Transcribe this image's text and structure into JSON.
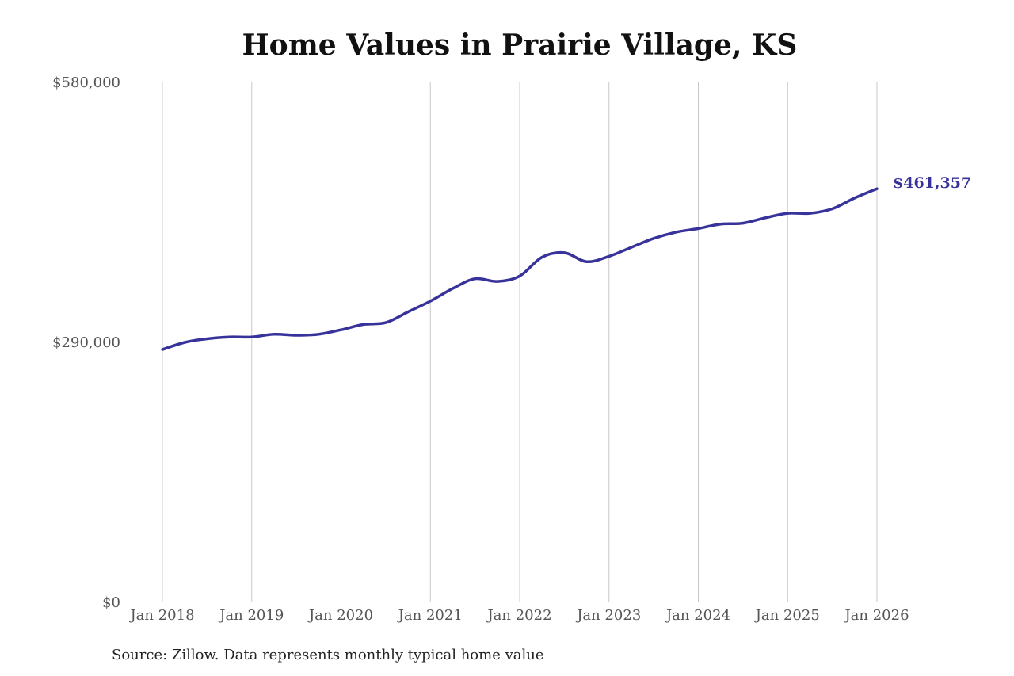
{
  "chart_data": {
    "type": "line",
    "title": "Home Values in Prairie Village, KS",
    "source_note": "Source: Zillow. Data represents monthly typical home value",
    "ylim": [
      0,
      580000
    ],
    "y_ticks": [
      {
        "value": 0,
        "label": "$0"
      },
      {
        "value": 290000,
        "label": "$290,000"
      },
      {
        "value": 580000,
        "label": "$580,000"
      }
    ],
    "x_ticks": [
      {
        "value": "2018-01",
        "label": "Jan 2018"
      },
      {
        "value": "2019-01",
        "label": "Jan 2019"
      },
      {
        "value": "2020-01",
        "label": "Jan 2020"
      },
      {
        "value": "2021-01",
        "label": "Jan 2021"
      },
      {
        "value": "2022-01",
        "label": "Jan 2022"
      },
      {
        "value": "2023-01",
        "label": "Jan 2023"
      },
      {
        "value": "2024-01",
        "label": "Jan 2024"
      },
      {
        "value": "2025-01",
        "label": "Jan 2025"
      },
      {
        "value": "2026-01",
        "label": "Jan 2026"
      }
    ],
    "grid": "vertical",
    "line_color": "#38339a",
    "series": [
      {
        "points": [
          {
            "x": "2018-01",
            "y": 282000
          },
          {
            "x": "2018-04",
            "y": 290000
          },
          {
            "x": "2018-07",
            "y": 294000
          },
          {
            "x": "2018-10",
            "y": 296000
          },
          {
            "x": "2019-01",
            "y": 296000
          },
          {
            "x": "2019-04",
            "y": 299000
          },
          {
            "x": "2019-07",
            "y": 298000
          },
          {
            "x": "2019-10",
            "y": 299000
          },
          {
            "x": "2020-01",
            "y": 304000
          },
          {
            "x": "2020-04",
            "y": 310000
          },
          {
            "x": "2020-07",
            "y": 312000
          },
          {
            "x": "2020-10",
            "y": 324000
          },
          {
            "x": "2021-01",
            "y": 336000
          },
          {
            "x": "2021-04",
            "y": 350000
          },
          {
            "x": "2021-07",
            "y": 361000
          },
          {
            "x": "2021-10",
            "y": 358000
          },
          {
            "x": "2022-01",
            "y": 364000
          },
          {
            "x": "2022-04",
            "y": 385000
          },
          {
            "x": "2022-07",
            "y": 390000
          },
          {
            "x": "2022-10",
            "y": 380000
          },
          {
            "x": "2023-01",
            "y": 386000
          },
          {
            "x": "2023-04",
            "y": 396000
          },
          {
            "x": "2023-07",
            "y": 406000
          },
          {
            "x": "2023-10",
            "y": 413000
          },
          {
            "x": "2024-01",
            "y": 417000
          },
          {
            "x": "2024-04",
            "y": 422000
          },
          {
            "x": "2024-07",
            "y": 423000
          },
          {
            "x": "2024-10",
            "y": 429000
          },
          {
            "x": "2025-01",
            "y": 434000
          },
          {
            "x": "2025-04",
            "y": 434000
          },
          {
            "x": "2025-07",
            "y": 439000
          },
          {
            "x": "2025-10",
            "y": 451000
          },
          {
            "x": "2026-01",
            "y": 461357
          }
        ]
      }
    ],
    "end_label": "$461,357"
  }
}
